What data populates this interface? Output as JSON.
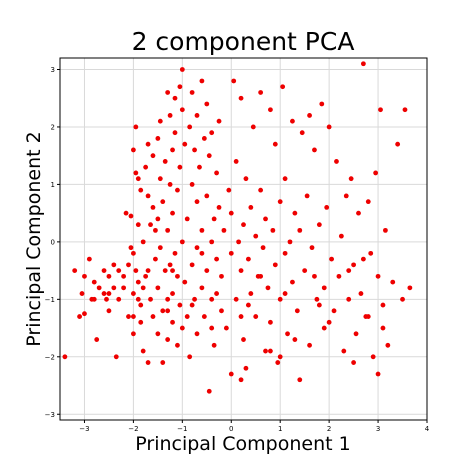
{
  "chart_data": {
    "type": "scatter",
    "title": "2 component PCA",
    "xlabel": "Principal Component 1",
    "ylabel": "Principal Component 2",
    "xlim": [
      -3.5,
      4.0
    ],
    "ylim": [
      -3.1,
      3.2
    ],
    "xticks": [
      -3,
      -2,
      -1,
      0,
      1,
      2,
      3,
      4
    ],
    "yticks": [
      -3,
      -2,
      -1,
      0,
      1,
      2,
      3
    ],
    "grid": true,
    "point_color": "#ee0000",
    "series": [
      {
        "points": [
          [
            -3.4,
            -2.0
          ],
          [
            -3.2,
            -0.5
          ],
          [
            -3.1,
            -1.3
          ],
          [
            -3.05,
            -0.9
          ],
          [
            -3.0,
            -1.25
          ],
          [
            -3.0,
            -0.6
          ],
          [
            -2.9,
            -0.3
          ],
          [
            -2.85,
            -1.0
          ],
          [
            -2.8,
            -0.7
          ],
          [
            -2.75,
            -1.7
          ],
          [
            -2.7,
            -0.8
          ],
          [
            -2.6,
            -0.9
          ],
          [
            -2.6,
            -0.5
          ],
          [
            -2.55,
            -1.0
          ],
          [
            -2.5,
            -0.6
          ],
          [
            -2.5,
            -1.2
          ],
          [
            -2.4,
            -0.4
          ],
          [
            -2.4,
            -0.8
          ],
          [
            -2.35,
            -2.0
          ],
          [
            -2.3,
            -0.5
          ],
          [
            -2.3,
            -1.0
          ],
          [
            -2.2,
            -0.6
          ],
          [
            -2.2,
            -0.8
          ],
          [
            -2.15,
            0.5
          ],
          [
            -2.1,
            -0.4
          ],
          [
            -2.1,
            -1.3
          ],
          [
            -2.05,
            0.45
          ],
          [
            -2.05,
            -0.1
          ],
          [
            -2.0,
            1.6
          ],
          [
            -2.0,
            -0.2
          ],
          [
            -2.0,
            -0.9
          ],
          [
            -2.0,
            -1.6
          ],
          [
            -1.95,
            -0.5
          ],
          [
            -1.95,
            1.2
          ],
          [
            -1.95,
            2.0
          ],
          [
            -1.9,
            1.1
          ],
          [
            -1.9,
            0.3
          ],
          [
            -1.9,
            -0.7
          ],
          [
            -1.9,
            -1.0
          ],
          [
            -1.85,
            0.9
          ],
          [
            -1.85,
            -1.1
          ],
          [
            -1.85,
            -1.4
          ],
          [
            -1.8,
            -0.8
          ],
          [
            -1.8,
            -1.9
          ],
          [
            -1.8,
            0.0
          ],
          [
            -1.75,
            1.3
          ],
          [
            -1.75,
            -0.6
          ],
          [
            -1.7,
            0.8
          ],
          [
            -1.7,
            -2.1
          ],
          [
            -1.7,
            1.7
          ],
          [
            -1.65,
            0.3
          ],
          [
            -1.65,
            -1.0
          ],
          [
            -1.6,
            0.6
          ],
          [
            -1.6,
            -1.3
          ],
          [
            -1.6,
            1.5
          ],
          [
            -1.55,
            -0.3
          ],
          [
            -1.55,
            0.2
          ],
          [
            -1.5,
            1.8
          ],
          [
            -1.5,
            0.4
          ],
          [
            -1.5,
            -0.8
          ],
          [
            -1.5,
            -1.6
          ],
          [
            -1.45,
            2.1
          ],
          [
            -1.45,
            1.1
          ],
          [
            -1.45,
            -0.1
          ],
          [
            -1.4,
            0.7
          ],
          [
            -1.4,
            -1.2
          ],
          [
            -1.4,
            -2.1
          ],
          [
            -1.35,
            1.4
          ],
          [
            -1.35,
            -0.5
          ],
          [
            -1.3,
            2.6
          ],
          [
            -1.3,
            0.2
          ],
          [
            -1.3,
            -1.0
          ],
          [
            -1.3,
            -1.7
          ],
          [
            -1.25,
            1.0
          ],
          [
            -1.25,
            2.2
          ],
          [
            -1.25,
            -0.4
          ],
          [
            -1.2,
            1.6
          ],
          [
            -1.2,
            -0.9
          ],
          [
            -1.2,
            0.5
          ],
          [
            -1.2,
            -1.4
          ],
          [
            -1.15,
            2.5
          ],
          [
            -1.15,
            1.9
          ],
          [
            -1.15,
            -0.2
          ],
          [
            -1.1,
            -0.6
          ],
          [
            -1.1,
            -1.8
          ],
          [
            -1.1,
            0.9
          ],
          [
            -1.05,
            2.7
          ],
          [
            -1.05,
            1.3
          ],
          [
            -1.05,
            -1.1
          ],
          [
            -1.0,
            3.0
          ],
          [
            -1.0,
            0.0
          ],
          [
            -1.0,
            -1.5
          ],
          [
            -1.0,
            2.3
          ],
          [
            -0.95,
            1.7
          ],
          [
            -0.95,
            -0.7
          ],
          [
            -0.9,
            0.4
          ],
          [
            -0.9,
            -1.3
          ],
          [
            -0.85,
            2.0
          ],
          [
            -0.85,
            -2.0
          ],
          [
            -0.8,
            1.0
          ],
          [
            -0.8,
            2.6
          ],
          [
            -0.8,
            -0.4
          ],
          [
            -0.75,
            1.6
          ],
          [
            -0.75,
            -1.0
          ],
          [
            -0.7,
            0.7
          ],
          [
            -0.7,
            2.2
          ],
          [
            -0.7,
            -0.1
          ],
          [
            -0.7,
            -1.6
          ],
          [
            -0.65,
            1.3
          ],
          [
            -0.6,
            0.2
          ],
          [
            -0.6,
            -0.8
          ],
          [
            -0.6,
            2.8
          ],
          [
            -0.55,
            1.8
          ],
          [
            -0.55,
            -1.3
          ],
          [
            -0.5,
            0.8
          ],
          [
            -0.5,
            -0.5
          ],
          [
            -0.5,
            2.4
          ],
          [
            -0.45,
            -2.6
          ],
          [
            -0.45,
            1.5
          ],
          [
            -0.4,
            0.0
          ],
          [
            -0.4,
            -1.0
          ],
          [
            -0.4,
            1.9
          ],
          [
            -0.35,
            0.4
          ],
          [
            -0.35,
            -1.8
          ],
          [
            -0.3,
            1.2
          ],
          [
            -0.3,
            -0.3
          ],
          [
            -0.25,
            2.1
          ],
          [
            -0.25,
            0.6
          ],
          [
            -0.2,
            -1.2
          ],
          [
            -0.2,
            -0.6
          ],
          [
            -0.15,
            0.2
          ],
          [
            -0.1,
            -1.5
          ],
          [
            -0.05,
            0.9
          ],
          [
            0.0,
            -2.3
          ],
          [
            0.0,
            0.5
          ],
          [
            0.0,
            -0.2
          ],
          [
            0.05,
            2.8
          ],
          [
            0.1,
            1.4
          ],
          [
            0.1,
            -1.0
          ],
          [
            0.15,
            0.0
          ],
          [
            0.2,
            2.5
          ],
          [
            0.2,
            -0.5
          ],
          [
            0.25,
            0.3
          ],
          [
            0.25,
            -1.7
          ],
          [
            0.3,
            1.1
          ],
          [
            0.3,
            -2.2
          ],
          [
            0.35,
            -0.3
          ],
          [
            0.4,
            0.6
          ],
          [
            0.4,
            -0.9
          ],
          [
            0.45,
            2.0
          ],
          [
            0.5,
            0.1
          ],
          [
            0.5,
            -1.3
          ],
          [
            0.55,
            -0.6
          ],
          [
            0.6,
            2.6
          ],
          [
            0.6,
            0.9
          ],
          [
            0.65,
            -0.1
          ],
          [
            0.7,
            -1.9
          ],
          [
            0.7,
            0.4
          ],
          [
            0.75,
            -0.8
          ],
          [
            0.8,
            2.3
          ],
          [
            0.8,
            -1.4
          ],
          [
            0.85,
            0.2
          ],
          [
            0.9,
            1.7
          ],
          [
            0.9,
            -0.4
          ],
          [
            0.95,
            -2.1
          ],
          [
            1.0,
            0.7
          ],
          [
            1.0,
            -1.0
          ],
          [
            1.05,
            2.7
          ],
          [
            1.1,
            -0.2
          ],
          [
            1.1,
            1.1
          ],
          [
            1.15,
            -1.6
          ],
          [
            1.2,
            0.0
          ],
          [
            1.25,
            2.1
          ],
          [
            1.25,
            -0.7
          ],
          [
            1.3,
            0.5
          ],
          [
            1.35,
            -1.2
          ],
          [
            1.4,
            -2.4
          ],
          [
            1.4,
            0.2
          ],
          [
            1.45,
            1.9
          ],
          [
            1.5,
            -0.5
          ],
          [
            1.55,
            0.8
          ],
          [
            1.6,
            -1.8
          ],
          [
            1.6,
            2.2
          ],
          [
            1.65,
            -0.1
          ],
          [
            1.7,
            1.6
          ],
          [
            1.75,
            -1.0
          ],
          [
            1.8,
            0.3
          ],
          [
            1.85,
            2.4
          ],
          [
            1.9,
            -0.8
          ],
          [
            1.9,
            -1.5
          ],
          [
            1.95,
            0.6
          ],
          [
            2.0,
            2.0
          ],
          [
            2.05,
            -0.3
          ],
          [
            2.1,
            -1.2
          ],
          [
            2.15,
            1.4
          ],
          [
            2.2,
            -0.6
          ],
          [
            2.25,
            0.1
          ],
          [
            2.3,
            -1.9
          ],
          [
            2.35,
            0.8
          ],
          [
            2.4,
            -1.0
          ],
          [
            2.45,
            1.1
          ],
          [
            2.5,
            -0.4
          ],
          [
            2.55,
            -1.6
          ],
          [
            2.6,
            0.5
          ],
          [
            2.65,
            -0.9
          ],
          [
            2.7,
            3.1
          ],
          [
            2.75,
            -1.3
          ],
          [
            2.8,
            0.7
          ],
          [
            2.85,
            -0.2
          ],
          [
            2.9,
            -2.0
          ],
          [
            2.95,
            1.2
          ],
          [
            3.0,
            -0.6
          ],
          [
            3.05,
            2.3
          ],
          [
            3.1,
            -1.1
          ],
          [
            3.15,
            0.2
          ],
          [
            3.2,
            -1.8
          ],
          [
            3.3,
            -0.7
          ],
          [
            3.4,
            1.7
          ],
          [
            3.5,
            -1.0
          ],
          [
            3.55,
            2.3
          ],
          [
            3.65,
            -0.8
          ],
          [
            -0.3,
            -0.9
          ],
          [
            0.35,
            -1.1
          ],
          [
            1.1,
            -0.9
          ],
          [
            1.7,
            -0.6
          ],
          [
            2.4,
            -0.5
          ],
          [
            2.7,
            -0.3
          ],
          [
            -1.2,
            -0.5
          ],
          [
            -2.5,
            -0.9
          ],
          [
            -2.8,
            -1.0
          ],
          [
            -1.7,
            -0.5
          ],
          [
            -0.6,
            -0.2
          ],
          [
            0.6,
            -0.6
          ],
          [
            2.0,
            -1.4
          ],
          [
            2.8,
            -1.3
          ],
          [
            3.1,
            -1.5
          ],
          [
            -0.8,
            -1.1
          ],
          [
            0.2,
            -1.3
          ],
          [
            1.3,
            -1.7
          ],
          [
            1.8,
            -1.1
          ],
          [
            -1.3,
            -1.2
          ],
          [
            -2.0,
            -1.3
          ],
          [
            -0.4,
            -1.5
          ],
          [
            0.8,
            -1.9
          ],
          [
            2.5,
            -2.1
          ],
          [
            3.0,
            -2.3
          ],
          [
            0.2,
            -2.4
          ],
          [
            1.0,
            -2.0
          ]
        ]
      }
    ]
  }
}
